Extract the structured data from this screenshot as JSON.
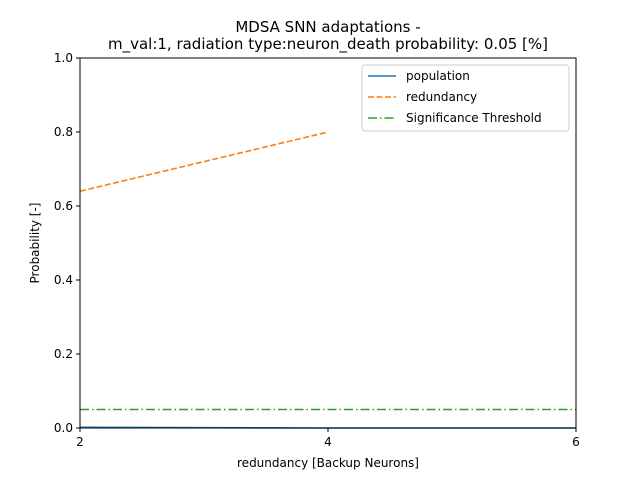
{
  "chart_data": {
    "type": "line",
    "title_line1": "MDSA SNN adaptations -",
    "title_line2": "m_val:1, radiation type:neuron_death probability: 0.05 [%]",
    "xlabel": "redundancy [Backup Neurons]",
    "ylabel": "Probability [-]",
    "xlim": [
      2,
      6
    ],
    "ylim": [
      0,
      1.0
    ],
    "xticks": [
      2,
      4,
      6
    ],
    "yticks": [
      0.0,
      0.2,
      0.4,
      0.6,
      0.8,
      1.0
    ],
    "xtick_labels": [
      "2",
      "4",
      "6"
    ],
    "ytick_labels": [
      "0.0",
      "0.2",
      "0.4",
      "0.6",
      "0.8",
      "1.0"
    ],
    "grid": false,
    "legend_position": "top-right",
    "series": [
      {
        "name": "population",
        "color": "#1f77b4",
        "style": "solid",
        "x": [
          2,
          4,
          6
        ],
        "y": [
          0.002,
          0.0,
          0.0
        ]
      },
      {
        "name": "redundancy",
        "color": "#ff7f0e",
        "style": "dashed",
        "x": [
          2,
          4
        ],
        "y": [
          0.64,
          0.8
        ]
      },
      {
        "name": "Significance Threshold",
        "color": "#2ca02c",
        "style": "dashdot",
        "x": [
          2,
          6
        ],
        "y": [
          0.05,
          0.05
        ]
      }
    ]
  }
}
